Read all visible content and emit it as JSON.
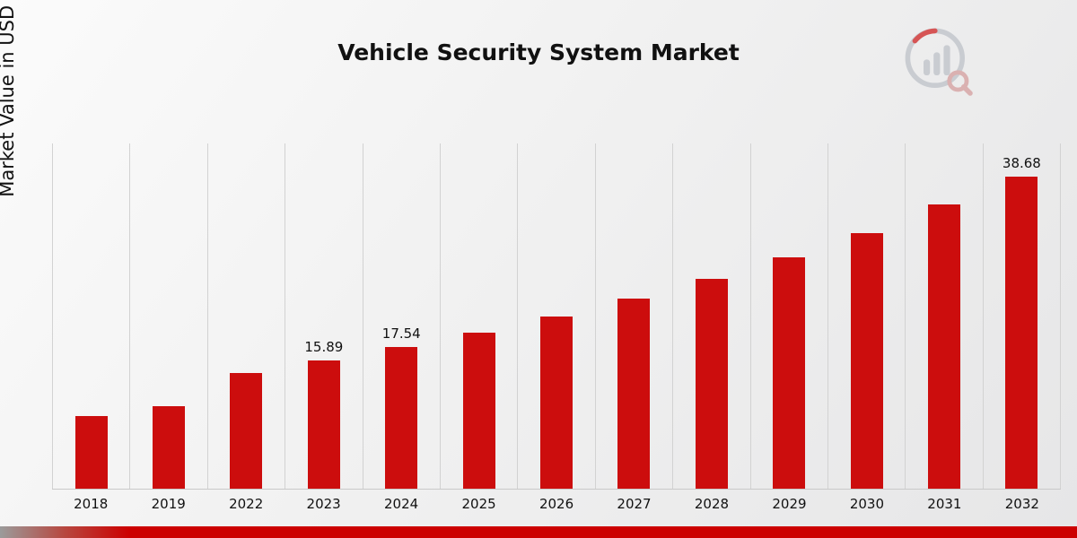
{
  "chart_data": {
    "type": "bar",
    "title": "Vehicle Security System Market",
    "ylabel": "Market Value in USD Billion",
    "categories": [
      "2018",
      "2019",
      "2022",
      "2023",
      "2024",
      "2025",
      "2026",
      "2027",
      "2028",
      "2029",
      "2030",
      "2031",
      "2032"
    ],
    "values": [
      9.0,
      10.2,
      14.3,
      15.89,
      17.54,
      19.3,
      21.4,
      23.6,
      26.0,
      28.7,
      31.7,
      35.2,
      38.68
    ],
    "data_labels": [
      null,
      null,
      null,
      "15.89",
      "17.54",
      null,
      null,
      null,
      null,
      null,
      null,
      null,
      "38.68"
    ],
    "bar_color": "#cc0d0d",
    "ylim": [
      0,
      42.8
    ],
    "grid": "vertical",
    "legend": "none"
  },
  "branding": {
    "logo_name": "market-research-future-logo"
  }
}
